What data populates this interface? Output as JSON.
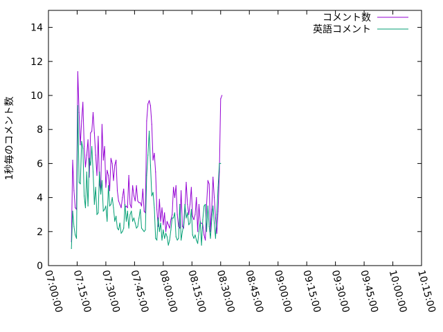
{
  "chart_data": {
    "type": "line",
    "ylabel": "1秒毎のコメント数",
    "xlabel": "",
    "ylim": [
      0,
      15
    ],
    "yticks": [
      0,
      2,
      4,
      6,
      8,
      10,
      12,
      14
    ],
    "xlim": [
      "07:00:00",
      "10:15:00"
    ],
    "xticks": [
      "07:00:00",
      "07:15:00",
      "07:30:00",
      "07:45:00",
      "08:00:00",
      "08:15:00",
      "08:30:00",
      "08:45:00",
      "09:00:00",
      "09:15:00",
      "09:30:00",
      "09:45:00",
      "10:00:00",
      "10:15:00"
    ],
    "grid": false,
    "legend_position": "top-right",
    "series": [
      {
        "name": "コメント数",
        "color": "#9400d3",
        "points": [
          [
            "07:12:00",
            1.4
          ],
          [
            "07:12:40",
            6.2
          ],
          [
            "07:13:20",
            4.4
          ],
          [
            "07:14:00",
            3.4
          ],
          [
            "07:14:40",
            3.3
          ],
          [
            "07:15:20",
            11.4
          ],
          [
            "07:16:00",
            9.0
          ],
          [
            "07:16:40",
            7.1
          ],
          [
            "07:17:20",
            8.5
          ],
          [
            "07:18:00",
            9.6
          ],
          [
            "07:18:40",
            7.0
          ],
          [
            "07:19:20",
            5.8
          ],
          [
            "07:20:00",
            6.5
          ],
          [
            "07:20:40",
            7.4
          ],
          [
            "07:21:20",
            5.2
          ],
          [
            "07:22:00",
            7.8
          ],
          [
            "07:22:40",
            7.9
          ],
          [
            "07:23:20",
            9.0
          ],
          [
            "07:24:00",
            7.8
          ],
          [
            "07:24:40",
            6.5
          ],
          [
            "07:25:20",
            5.3
          ],
          [
            "07:26:00",
            7.6
          ],
          [
            "07:26:40",
            4.8
          ],
          [
            "07:27:20",
            4.4
          ],
          [
            "07:28:00",
            8.3
          ],
          [
            "07:28:40",
            6.2
          ],
          [
            "07:29:20",
            7.0
          ],
          [
            "07:30:00",
            4.6
          ],
          [
            "07:30:40",
            5.6
          ],
          [
            "07:31:20",
            5.3
          ],
          [
            "07:32:00",
            4.4
          ],
          [
            "07:32:40",
            6.3
          ],
          [
            "07:33:20",
            6.0
          ],
          [
            "07:34:00",
            5.0
          ],
          [
            "07:34:40",
            5.9
          ],
          [
            "07:35:20",
            6.2
          ],
          [
            "07:36:00",
            4.4
          ],
          [
            "07:36:40",
            3.8
          ],
          [
            "07:37:20",
            3.6
          ],
          [
            "07:38:00",
            3.4
          ],
          [
            "07:38:40",
            4.0
          ],
          [
            "07:39:20",
            4.5
          ],
          [
            "07:40:00",
            3.4
          ],
          [
            "07:40:40",
            3.5
          ],
          [
            "07:41:20",
            3.4
          ],
          [
            "07:42:00",
            5.3
          ],
          [
            "07:42:40",
            3.6
          ],
          [
            "07:43:20",
            3.4
          ],
          [
            "07:44:00",
            4.7
          ],
          [
            "07:44:40",
            4.1
          ],
          [
            "07:45:20",
            3.8
          ],
          [
            "07:46:00",
            4.7
          ],
          [
            "07:46:40",
            3.8
          ],
          [
            "07:47:20",
            3.7
          ],
          [
            "07:48:00",
            3.7
          ],
          [
            "07:48:40",
            3.5
          ],
          [
            "07:49:20",
            4.5
          ],
          [
            "07:50:00",
            3.2
          ],
          [
            "07:50:40",
            3.1
          ],
          [
            "07:51:20",
            8.5
          ],
          [
            "07:52:00",
            9.5
          ],
          [
            "07:52:40",
            9.7
          ],
          [
            "07:53:20",
            9.4
          ],
          [
            "07:54:00",
            8.3
          ],
          [
            "07:54:40",
            6.2
          ],
          [
            "07:55:20",
            6.6
          ],
          [
            "07:56:00",
            5.5
          ],
          [
            "07:56:40",
            3.3
          ],
          [
            "07:57:20",
            2.3
          ],
          [
            "07:58:00",
            3.9
          ],
          [
            "07:58:40",
            2.6
          ],
          [
            "07:59:20",
            3.4
          ],
          [
            "08:00:00",
            2.4
          ],
          [
            "08:00:40",
            3.1
          ],
          [
            "08:01:20",
            2.0
          ],
          [
            "08:02:00",
            2.6
          ],
          [
            "08:02:40",
            2.4
          ],
          [
            "08:03:20",
            2.2
          ],
          [
            "08:04:00",
            2.7
          ],
          [
            "08:04:40",
            3.0
          ],
          [
            "08:05:20",
            4.6
          ],
          [
            "08:06:00",
            4.0
          ],
          [
            "08:06:40",
            4.7
          ],
          [
            "08:07:20",
            3.0
          ],
          [
            "08:08:00",
            2.3
          ],
          [
            "08:08:40",
            2.2
          ],
          [
            "08:09:20",
            4.4
          ],
          [
            "08:10:00",
            2.3
          ],
          [
            "08:10:40",
            2.2
          ],
          [
            "08:11:20",
            3.3
          ],
          [
            "08:12:00",
            4.9
          ],
          [
            "08:12:40",
            3.6
          ],
          [
            "08:13:20",
            3.0
          ],
          [
            "08:14:00",
            3.6
          ],
          [
            "08:14:40",
            4.6
          ],
          [
            "08:15:20",
            2.9
          ],
          [
            "08:16:00",
            2.7
          ],
          [
            "08:16:40",
            3.0
          ],
          [
            "08:17:20",
            4.0
          ],
          [
            "08:18:00",
            2.0
          ],
          [
            "08:18:40",
            3.6
          ],
          [
            "08:19:20",
            2.5
          ],
          [
            "08:20:00",
            2.5
          ],
          [
            "08:20:40",
            2.4
          ],
          [
            "08:21:20",
            1.8
          ],
          [
            "08:22:00",
            1.5
          ],
          [
            "08:22:40",
            3.6
          ],
          [
            "08:23:20",
            5.0
          ],
          [
            "08:24:00",
            4.8
          ],
          [
            "08:24:40",
            2.0
          ],
          [
            "08:25:20",
            3.3
          ],
          [
            "08:26:00",
            5.2
          ],
          [
            "08:26:40",
            4.0
          ],
          [
            "08:27:20",
            2.8
          ],
          [
            "08:28:00",
            1.9
          ],
          [
            "08:28:40",
            3.2
          ],
          [
            "08:29:20",
            5.5
          ],
          [
            "08:30:00",
            9.8
          ],
          [
            "08:30:40",
            10.0
          ]
        ]
      },
      {
        "name": "英語コメント",
        "color": "#009e73",
        "points": [
          [
            "07:12:00",
            1.0
          ],
          [
            "07:12:40",
            3.2
          ],
          [
            "07:13:20",
            2.3
          ],
          [
            "07:14:00",
            1.8
          ],
          [
            "07:14:40",
            1.6
          ],
          [
            "07:15:20",
            9.4
          ],
          [
            "07:16:00",
            4.9
          ],
          [
            "07:16:40",
            4.8
          ],
          [
            "07:17:20",
            7.3
          ],
          [
            "07:18:00",
            6.9
          ],
          [
            "07:18:40",
            4.1
          ],
          [
            "07:19:20",
            3.4
          ],
          [
            "07:20:00",
            5.5
          ],
          [
            "07:20:40",
            3.5
          ],
          [
            "07:21:20",
            6.3
          ],
          [
            "07:22:00",
            5.9
          ],
          [
            "07:22:40",
            7.0
          ],
          [
            "07:23:20",
            5.5
          ],
          [
            "07:24:00",
            3.6
          ],
          [
            "07:24:40",
            4.6
          ],
          [
            "07:25:20",
            3.0
          ],
          [
            "07:26:00",
            3.1
          ],
          [
            "07:26:40",
            5.5
          ],
          [
            "07:27:20",
            4.2
          ],
          [
            "07:28:00",
            5.0
          ],
          [
            "07:28:40",
            3.2
          ],
          [
            "07:29:20",
            3.3
          ],
          [
            "07:30:00",
            3.5
          ],
          [
            "07:30:40",
            2.6
          ],
          [
            "07:31:20",
            4.7
          ],
          [
            "07:32:00",
            3.5
          ],
          [
            "07:32:40",
            3.6
          ],
          [
            "07:33:20",
            4.0
          ],
          [
            "07:34:00",
            3.4
          ],
          [
            "07:34:40",
            2.6
          ],
          [
            "07:35:20",
            2.9
          ],
          [
            "07:36:00",
            2.2
          ],
          [
            "07:36:40",
            2.1
          ],
          [
            "07:37:20",
            2.5
          ],
          [
            "07:38:00",
            1.9
          ],
          [
            "07:38:40",
            2.0
          ],
          [
            "07:39:20",
            2.2
          ],
          [
            "07:40:00",
            3.6
          ],
          [
            "07:40:40",
            2.6
          ],
          [
            "07:41:20",
            3.2
          ],
          [
            "07:42:00",
            2.2
          ],
          [
            "07:42:40",
            3.0
          ],
          [
            "07:43:20",
            3.2
          ],
          [
            "07:44:00",
            2.6
          ],
          [
            "07:44:40",
            2.8
          ],
          [
            "07:45:20",
            2.5
          ],
          [
            "07:46:00",
            2.2
          ],
          [
            "07:46:40",
            2.3
          ],
          [
            "07:47:20",
            2.8
          ],
          [
            "07:48:00",
            3.3
          ],
          [
            "07:48:40",
            2.2
          ],
          [
            "07:49:20",
            2.1
          ],
          [
            "07:50:00",
            2.0
          ],
          [
            "07:50:40",
            2.1
          ],
          [
            "07:51:20",
            5.3
          ],
          [
            "07:52:00",
            6.5
          ],
          [
            "07:52:40",
            7.9
          ],
          [
            "07:53:20",
            5.9
          ],
          [
            "07:54:00",
            4.1
          ],
          [
            "07:54:40",
            4.3
          ],
          [
            "07:55:20",
            3.4
          ],
          [
            "07:56:00",
            1.6
          ],
          [
            "07:56:40",
            1.5
          ],
          [
            "07:57:20",
            2.8
          ],
          [
            "07:58:00",
            2.0
          ],
          [
            "07:58:40",
            2.5
          ],
          [
            "07:59:20",
            1.5
          ],
          [
            "08:00:00",
            2.1
          ],
          [
            "08:00:40",
            1.6
          ],
          [
            "08:01:20",
            1.9
          ],
          [
            "08:02:00",
            1.7
          ],
          [
            "08:02:40",
            1.2
          ],
          [
            "08:03:20",
            1.5
          ],
          [
            "08:04:00",
            2.1
          ],
          [
            "08:04:40",
            2.8
          ],
          [
            "08:05:20",
            2.8
          ],
          [
            "08:06:00",
            3.1
          ],
          [
            "08:06:40",
            1.7
          ],
          [
            "08:07:20",
            1.5
          ],
          [
            "08:08:00",
            1.6
          ],
          [
            "08:08:40",
            3.6
          ],
          [
            "08:09:20",
            1.5
          ],
          [
            "08:10:00",
            2.0
          ],
          [
            "08:10:40",
            2.4
          ],
          [
            "08:11:20",
            3.6
          ],
          [
            "08:12:00",
            2.8
          ],
          [
            "08:12:40",
            3.1
          ],
          [
            "08:13:20",
            2.4
          ],
          [
            "08:14:00",
            2.5
          ],
          [
            "08:14:40",
            3.3
          ],
          [
            "08:15:20",
            1.8
          ],
          [
            "08:16:00",
            1.6
          ],
          [
            "08:16:40",
            1.8
          ],
          [
            "08:17:20",
            1.5
          ],
          [
            "08:18:00",
            1.3
          ],
          [
            "08:18:40",
            2.0
          ],
          [
            "08:19:20",
            2.6
          ],
          [
            "08:20:00",
            1.2
          ],
          [
            "08:20:40",
            2.7
          ],
          [
            "08:21:20",
            3.5
          ],
          [
            "08:22:00",
            3.6
          ],
          [
            "08:22:40",
            2.0
          ],
          [
            "08:23:20",
            3.5
          ],
          [
            "08:24:00",
            2.3
          ],
          [
            "08:24:40",
            1.6
          ],
          [
            "08:25:20",
            2.7
          ],
          [
            "08:26:00",
            3.5
          ],
          [
            "08:26:40",
            2.5
          ],
          [
            "08:27:20",
            1.6
          ],
          [
            "08:28:00",
            3.0
          ],
          [
            "08:28:40",
            4.6
          ],
          [
            "08:29:20",
            6.0
          ],
          [
            "08:30:00",
            6.0
          ]
        ]
      }
    ]
  }
}
